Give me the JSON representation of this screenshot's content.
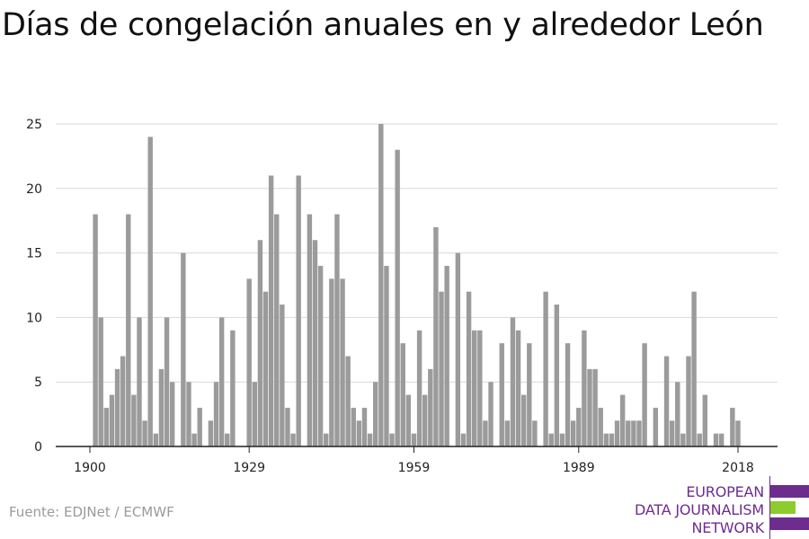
{
  "title": "Días de congelación anuales en y alrededor León",
  "source": "Fuente: EDJNet / ECMWF",
  "logo": {
    "lines": [
      "EUROPEAN",
      "DATA JOURNALISM",
      "NETWORK"
    ],
    "colors": {
      "purple": "#6c2d8f",
      "green": "#8ccc2c"
    }
  },
  "chart_data": {
    "type": "bar",
    "title": "Días de congelación anuales en y alrededor León",
    "xlabel": "",
    "ylabel": "",
    "x": [
      1900,
      1901,
      1902,
      1903,
      1904,
      1905,
      1906,
      1907,
      1908,
      1909,
      1910,
      1911,
      1912,
      1913,
      1914,
      1915,
      1916,
      1917,
      1918,
      1919,
      1920,
      1921,
      1922,
      1923,
      1924,
      1925,
      1926,
      1927,
      1928,
      1929,
      1930,
      1931,
      1932,
      1933,
      1934,
      1935,
      1936,
      1937,
      1938,
      1939,
      1940,
      1941,
      1942,
      1943,
      1944,
      1945,
      1946,
      1947,
      1948,
      1949,
      1950,
      1951,
      1952,
      1953,
      1954,
      1955,
      1956,
      1957,
      1958,
      1959,
      1960,
      1961,
      1962,
      1963,
      1964,
      1965,
      1966,
      1967,
      1968,
      1969,
      1970,
      1971,
      1972,
      1973,
      1974,
      1975,
      1976,
      1977,
      1978,
      1979,
      1980,
      1981,
      1982,
      1983,
      1984,
      1985,
      1986,
      1987,
      1988,
      1989,
      1990,
      1991,
      1992,
      1993,
      1994,
      1995,
      1996,
      1997,
      1998,
      1999,
      2000,
      2001,
      2002,
      2003,
      2004,
      2005,
      2006,
      2007,
      2008,
      2009,
      2010,
      2011,
      2012,
      2013,
      2014,
      2015,
      2016,
      2017,
      2018,
      2019
    ],
    "values": [
      0,
      18,
      10,
      3,
      4,
      6,
      7,
      18,
      4,
      10,
      2,
      24,
      1,
      6,
      10,
      5,
      0,
      15,
      5,
      1,
      3,
      0,
      2,
      5,
      10,
      1,
      9,
      0,
      0,
      13,
      5,
      16,
      12,
      21,
      18,
      11,
      3,
      1,
      21,
      0,
      18,
      16,
      14,
      1,
      13,
      18,
      13,
      7,
      3,
      2,
      3,
      1,
      5,
      25,
      14,
      1,
      23,
      8,
      4,
      1,
      9,
      4,
      6,
      17,
      12,
      14,
      0,
      15,
      1,
      12,
      9,
      9,
      2,
      5,
      0,
      8,
      2,
      10,
      9,
      4,
      8,
      2,
      0,
      12,
      1,
      11,
      1,
      8,
      2,
      3,
      9,
      6,
      6,
      3,
      1,
      1,
      2,
      4,
      2,
      2,
      2,
      8,
      0,
      3,
      0,
      7,
      2,
      5,
      1,
      7,
      12,
      1,
      4,
      0,
      1,
      1,
      0,
      3,
      2,
      0
    ],
    "x_ticks": [
      1900,
      1929,
      1959,
      1989,
      2018
    ],
    "y_ticks": [
      0,
      5,
      10,
      15,
      20,
      25
    ],
    "xlim": [
      1900,
      2019
    ],
    "ylim": [
      0,
      25
    ],
    "grid": true,
    "legend": "none",
    "color": "#9b9b9b"
  }
}
